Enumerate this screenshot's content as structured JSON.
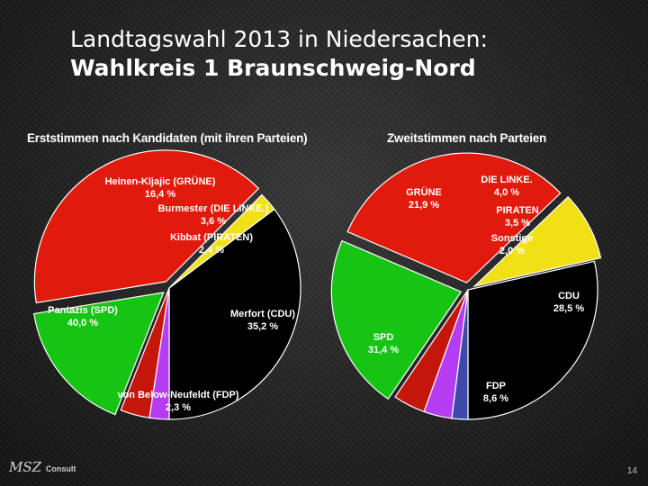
{
  "title": {
    "line1": "Landtagswahl 2013 in Niedersachen:",
    "line2": "Wahlkreis 1 Braunschweig-Nord"
  },
  "chart_data": [
    {
      "type": "pie",
      "title": "Erststimmen nach Kandidaten (mit ihren Parteien)",
      "slices": [
        {
          "name": "Merfort (CDU)",
          "value": 35.2,
          "value_label": "35,2 %",
          "color": "#000000"
        },
        {
          "name": "von Below-Neufeldt (FDP)",
          "value": 2.3,
          "value_label": "2,3 %",
          "color": "#f1e016"
        },
        {
          "name": "Pantazis (SPD)",
          "value": 40.0,
          "value_label": "40,0 %",
          "color": "#e01a0c"
        },
        {
          "name": "Heinen-Kljajic (GRÜNE)",
          "value": 16.4,
          "value_label": "16,4 %",
          "color": "#16c414"
        },
        {
          "name": "Burmester (DIE LINKE.)",
          "value": 3.6,
          "value_label": "3,6 %",
          "color": "#c5160c"
        },
        {
          "name": "Kibbat (PIRATEN)",
          "value": 2.4,
          "value_label": "2,4 %",
          "color": "#b53cf0"
        }
      ]
    },
    {
      "type": "pie",
      "title": "Zweitstimmen nach Parteien",
      "slices": [
        {
          "name": "CDU",
          "value": 28.5,
          "value_label": "28,5 %",
          "color": "#000000"
        },
        {
          "name": "FDP",
          "value": 8.6,
          "value_label": "8,6 %",
          "color": "#f1e016"
        },
        {
          "name": "SPD",
          "value": 31.4,
          "value_label": "31,4 %",
          "color": "#e01a0c"
        },
        {
          "name": "GRÜNE",
          "value": 21.9,
          "value_label": "21,9 %",
          "color": "#16c414"
        },
        {
          "name": "DIE LINKE.",
          "value": 4.0,
          "value_label": "4,0 %",
          "color": "#c5160c"
        },
        {
          "name": "PIRATEN",
          "value": 3.5,
          "value_label": "3,5 %",
          "color": "#b53cf0"
        },
        {
          "name": "Sonstige",
          "value": 2.0,
          "value_label": "2,0 %",
          "color": "#3e4aa8"
        }
      ]
    }
  ],
  "footer": {
    "logo_text": "MSZ",
    "logo_suffix": "Consult",
    "page_number": "14"
  }
}
